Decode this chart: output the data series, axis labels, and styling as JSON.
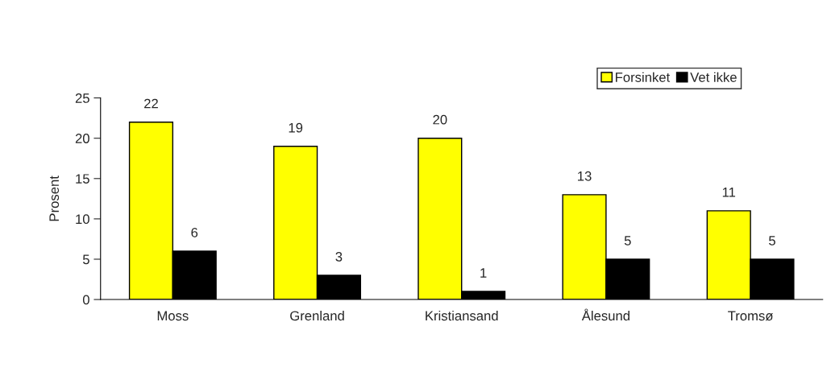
{
  "chart_data": {
    "type": "bar",
    "ylabel": "Prosent",
    "categories": [
      "Moss",
      "Grenland",
      "Kristiansand",
      "Ålesund",
      "Tromsø"
    ],
    "series": [
      {
        "name": "Forsinket",
        "color": "#ffff00",
        "values": [
          22,
          19,
          20,
          13,
          11
        ]
      },
      {
        "name": "Vet ikke",
        "color": "#000000",
        "values": [
          6,
          3,
          1,
          5,
          5
        ]
      }
    ],
    "ylim": [
      0,
      25
    ],
    "yticks": [
      0,
      5,
      10,
      15,
      20,
      25
    ],
    "grid": false,
    "legend": "top right",
    "data_labels": true
  }
}
